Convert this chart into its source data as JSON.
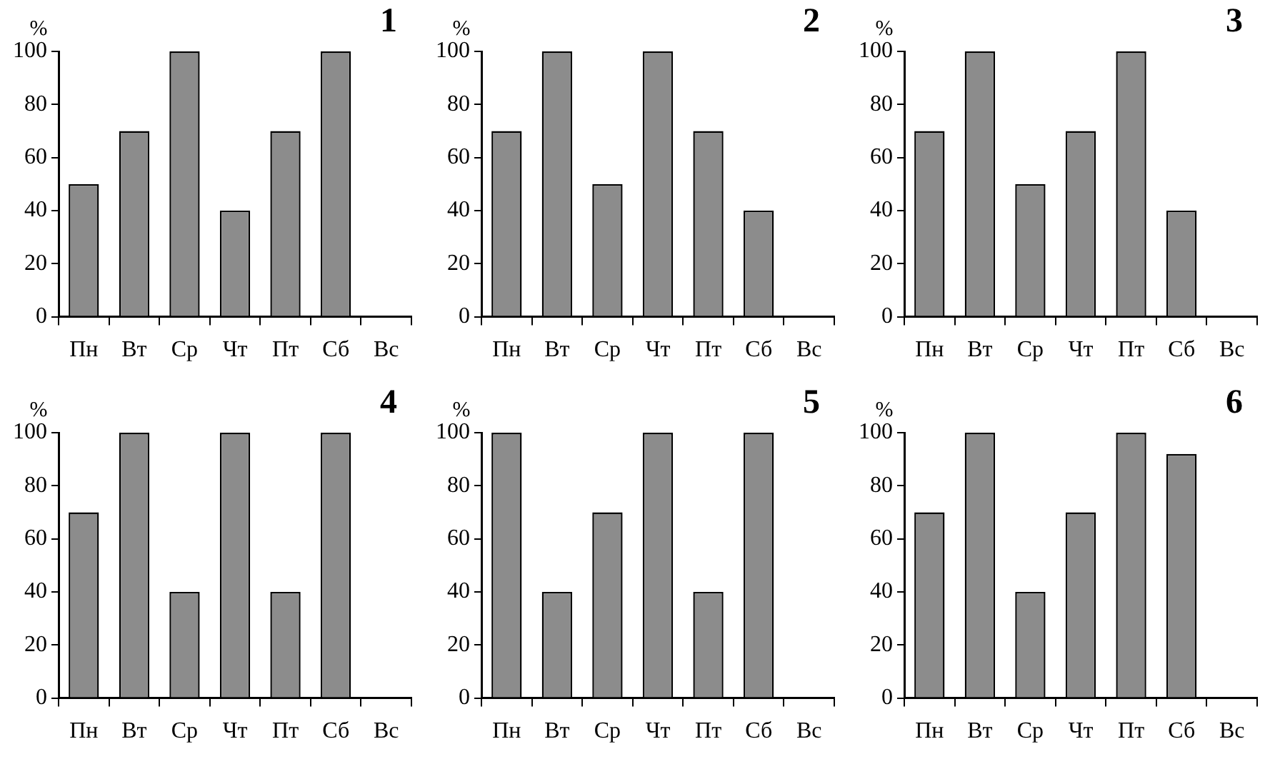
{
  "chart_data": [
    {
      "type": "bar",
      "title": "1",
      "ylabel": "%",
      "categories": [
        "Пн",
        "Вт",
        "Ср",
        "Чт",
        "Пт",
        "Сб",
        "Вс"
      ],
      "values": [
        50,
        70,
        100,
        40,
        70,
        100,
        null
      ],
      "color": "#8c8c8c",
      "ylim": [
        0,
        100
      ],
      "yticks": [
        0,
        20,
        40,
        60,
        80,
        100
      ],
      "grid": false,
      "legend": false
    },
    {
      "type": "bar",
      "title": "2",
      "ylabel": "%",
      "categories": [
        "Пн",
        "Вт",
        "Ср",
        "Чт",
        "Пт",
        "Сб",
        "Вс"
      ],
      "values": [
        70,
        100,
        50,
        100,
        70,
        40,
        null
      ],
      "color": "#8c8c8c",
      "ylim": [
        0,
        100
      ],
      "yticks": [
        0,
        20,
        40,
        60,
        80,
        100
      ],
      "grid": false,
      "legend": false
    },
    {
      "type": "bar",
      "title": "3",
      "ylabel": "%",
      "categories": [
        "Пн",
        "Вт",
        "Ср",
        "Чт",
        "Пт",
        "Сб",
        "Вс"
      ],
      "values": [
        70,
        100,
        50,
        70,
        100,
        40,
        null
      ],
      "color": "#8c8c8c",
      "ylim": [
        0,
        100
      ],
      "yticks": [
        0,
        20,
        40,
        60,
        80,
        100
      ],
      "grid": false,
      "legend": false
    },
    {
      "type": "bar",
      "title": "4",
      "ylabel": "%",
      "categories": [
        "Пн",
        "Вт",
        "Ср",
        "Чт",
        "Пт",
        "Сб",
        "Вс"
      ],
      "values": [
        70,
        100,
        40,
        100,
        40,
        100,
        null
      ],
      "color": "#8c8c8c",
      "ylim": [
        0,
        100
      ],
      "yticks": [
        0,
        20,
        40,
        60,
        80,
        100
      ],
      "grid": false,
      "legend": false
    },
    {
      "type": "bar",
      "title": "5",
      "ylabel": "%",
      "categories": [
        "Пн",
        "Вт",
        "Ср",
        "Чт",
        "Пт",
        "Сб",
        "Вс"
      ],
      "values": [
        100,
        40,
        70,
        100,
        40,
        100,
        null
      ],
      "color": "#8c8c8c",
      "ylim": [
        0,
        100
      ],
      "yticks": [
        0,
        20,
        40,
        60,
        80,
        100
      ],
      "grid": false,
      "legend": false
    },
    {
      "type": "bar",
      "title": "6",
      "ylabel": "%",
      "categories": [
        "Пн",
        "Вт",
        "Ср",
        "Чт",
        "Пт",
        "Сб",
        "Вс"
      ],
      "values": [
        70,
        100,
        40,
        70,
        100,
        92,
        null
      ],
      "color": "#8c8c8c",
      "ylim": [
        0,
        100
      ],
      "yticks": [
        0,
        20,
        40,
        60,
        80,
        100
      ],
      "grid": false,
      "legend": false
    }
  ]
}
